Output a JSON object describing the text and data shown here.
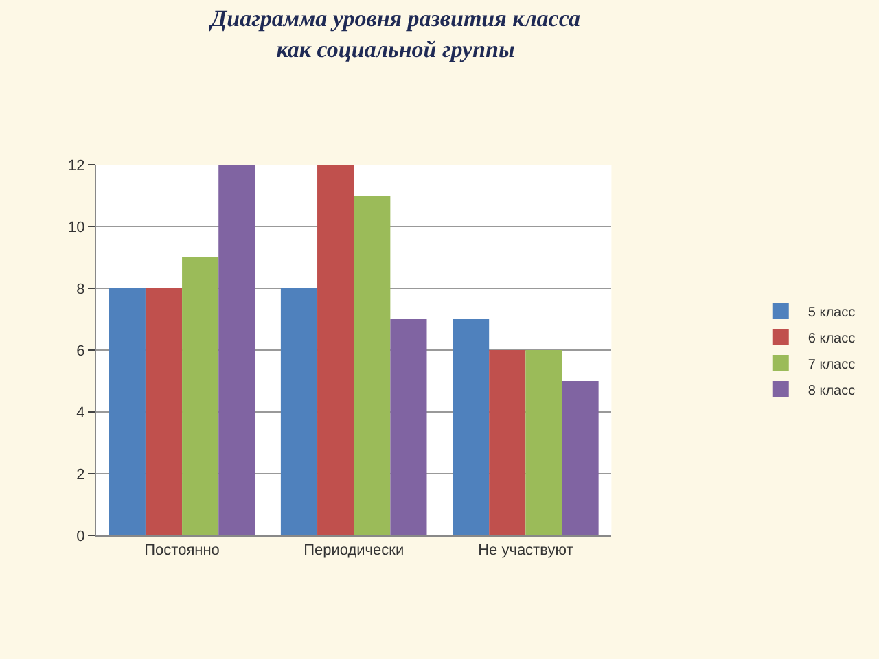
{
  "chart_data": {
    "type": "bar",
    "title": "Диаграмма уровня развития класса\nкак социальной группы",
    "categories": [
      "Постоянно",
      "Периодически",
      "Не участвуют"
    ],
    "series": [
      {
        "name": "5 класс",
        "color": "#4f81bd",
        "values": [
          8,
          8,
          7
        ]
      },
      {
        "name": "6 класс",
        "color": "#c0504d",
        "values": [
          8,
          12,
          6
        ]
      },
      {
        "name": "7 класс",
        "color": "#9bbb59",
        "values": [
          9,
          11,
          6
        ]
      },
      {
        "name": "8 класс",
        "color": "#8064a2",
        "values": [
          12,
          7,
          5
        ]
      }
    ],
    "ylim": [
      0,
      12
    ],
    "yticks": [
      0,
      2,
      4,
      6,
      8,
      10,
      12
    ],
    "grid": "y",
    "legend": "right"
  }
}
